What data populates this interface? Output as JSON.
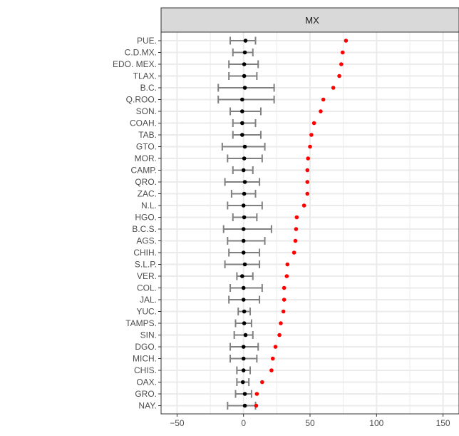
{
  "chart_data": {
    "type": "scatter",
    "facet_label": "MX",
    "categories": [
      "PUE.",
      "C.D.MX.",
      "EDO. MEX.",
      "TLAX.",
      "B.C.",
      "Q.ROO.",
      "SON.",
      "COAH.",
      "TAB.",
      "GTO.",
      "MOR.",
      "CAMP.",
      "QRO.",
      "ZAC.",
      "N.L.",
      "HGO.",
      "B.C.S.",
      "AGS.",
      "CHIH.",
      "S.L.P.",
      "VER.",
      "COL.",
      "JAL.",
      "YUC.",
      "TAMPS.",
      "SIN.",
      "DGO.",
      "MICH.",
      "CHIS.",
      "OAX.",
      "GRO.",
      "NAY."
    ],
    "series": [
      {
        "color": "#ff0000",
        "values": [
          77,
          74.5,
          73.5,
          72,
          67.5,
          60,
          58,
          53,
          51,
          50,
          48.5,
          48,
          48,
          48,
          45.5,
          40,
          39.5,
          39,
          38,
          33,
          32.5,
          30.5,
          30.5,
          30,
          28,
          27,
          24,
          22,
          21,
          14,
          10,
          9.5
        ]
      },
      {
        "color": "#000000",
        "values": [
          1.5,
          1,
          0.5,
          0.5,
          1,
          -1,
          -1,
          -1,
          -1,
          1,
          0.5,
          0,
          1,
          0.5,
          0,
          0.5,
          0,
          0,
          0,
          1,
          -1,
          0,
          0,
          0.5,
          0.5,
          1.5,
          0,
          0,
          0,
          -0.5,
          1,
          1
        ],
        "lower": [
          -10,
          -8,
          -11,
          -11,
          -19,
          -19,
          -10,
          -8,
          -8,
          -16,
          -12,
          -8,
          -14,
          -9,
          -12,
          -8,
          -15,
          -12,
          -11,
          -14,
          -5,
          -10,
          -11,
          -4,
          -6,
          -7,
          -10,
          -10,
          -5,
          -5,
          -6,
          -12
        ],
        "upper": [
          9,
          7,
          11,
          10,
          23,
          23,
          13,
          9,
          13,
          16,
          14,
          7,
          12,
          9,
          14,
          10,
          21,
          16,
          12,
          12,
          7,
          14,
          12,
          5,
          6,
          7,
          11,
          10,
          5,
          4,
          6,
          9
        ],
        "error_color": "#808080"
      }
    ],
    "xticks": [
      -50,
      0,
      50,
      100,
      150
    ],
    "xlim": [
      -62,
      162
    ],
    "grid": true
  }
}
